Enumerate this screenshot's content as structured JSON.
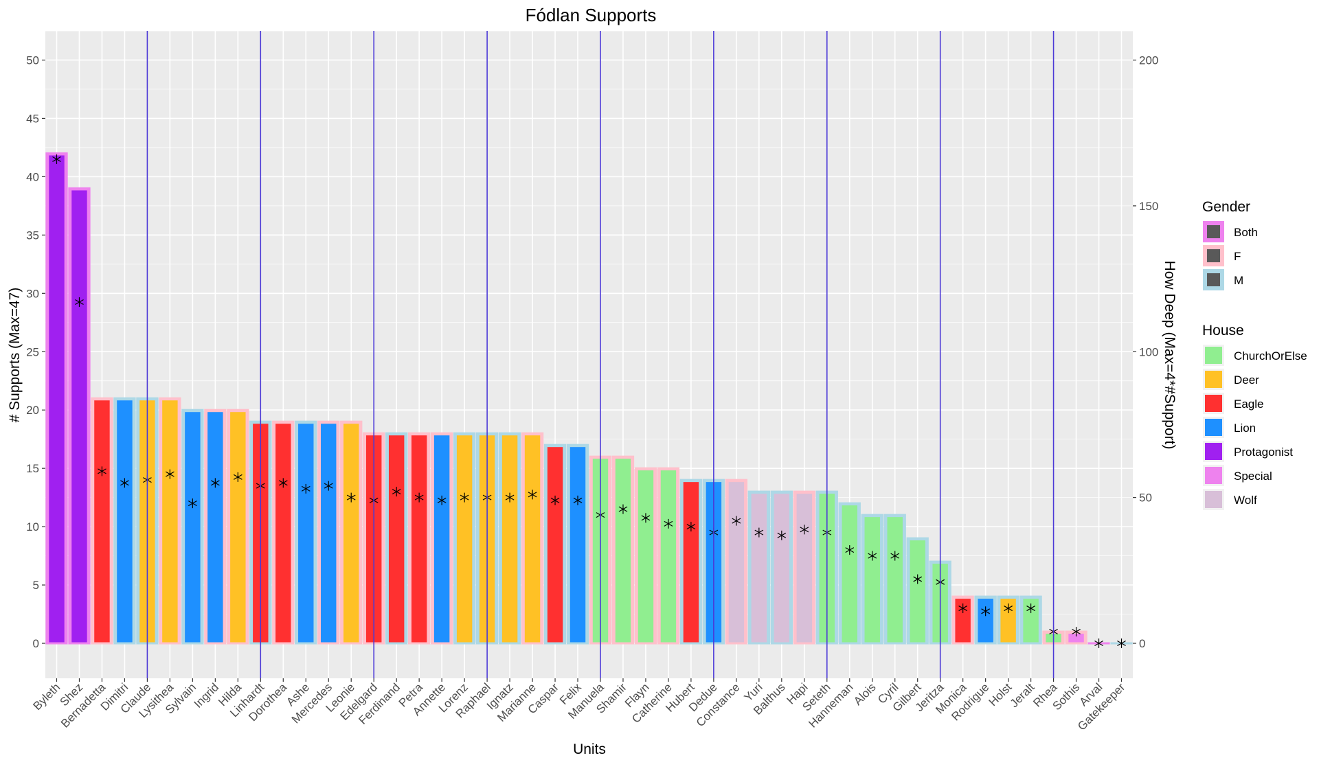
{
  "chart_data": {
    "type": "bar",
    "title": "Fódlan Supports",
    "xlabel": "Units",
    "ylabel": "# Supports (Max=47)",
    "y2label": "How Deep (Max=4*#Support)",
    "ylim": [
      -3,
      52.5
    ],
    "y2lim": [
      -12,
      210
    ],
    "yticks": [
      0,
      5,
      10,
      15,
      20,
      25,
      30,
      35,
      40,
      45,
      50
    ],
    "y2ticks": [
      0,
      50,
      100,
      150,
      200
    ],
    "grid": true,
    "legend_position": "right",
    "vlines_after_units": [
      "Claude",
      "Linhardt",
      "Edelgard",
      "Raphael",
      "Manuela",
      "Dedue",
      "Seteth",
      "Jeritza",
      "Rhea"
    ],
    "house_colors": {
      "ChurchOrElse": "#90EE90",
      "Deer": "#FFC125",
      "Eagle": "#FF3030",
      "Lion": "#1E90FF",
      "Protagonist": "#A020F0",
      "Special": "#EE82EE",
      "Wolf": "#D8BFD8"
    },
    "gender_colors": {
      "Both": "#EE82EE",
      "F": "#FFC0CB",
      "M": "#ADD8E6"
    },
    "units": [
      {
        "name": "Byleth",
        "supports": 42,
        "depth": 166,
        "house": "Protagonist",
        "gender": "Both"
      },
      {
        "name": "Shez",
        "supports": 39,
        "depth": 117,
        "house": "Protagonist",
        "gender": "Both"
      },
      {
        "name": "Bernadetta",
        "supports": 21,
        "depth": 59,
        "house": "Eagle",
        "gender": "F"
      },
      {
        "name": "Dimitri",
        "supports": 21,
        "depth": 55,
        "house": "Lion",
        "gender": "M"
      },
      {
        "name": "Claude",
        "supports": 21,
        "depth": 56,
        "house": "Deer",
        "gender": "M"
      },
      {
        "name": "Lysithea",
        "supports": 21,
        "depth": 58,
        "house": "Deer",
        "gender": "F"
      },
      {
        "name": "Sylvain",
        "supports": 20,
        "depth": 48,
        "house": "Lion",
        "gender": "M"
      },
      {
        "name": "Ingrid",
        "supports": 20,
        "depth": 55,
        "house": "Lion",
        "gender": "F"
      },
      {
        "name": "Hilda",
        "supports": 20,
        "depth": 57,
        "house": "Deer",
        "gender": "F"
      },
      {
        "name": "Linhardt",
        "supports": 19,
        "depth": 54,
        "house": "Eagle",
        "gender": "M"
      },
      {
        "name": "Dorothea",
        "supports": 19,
        "depth": 55,
        "house": "Eagle",
        "gender": "F"
      },
      {
        "name": "Ashe",
        "supports": 19,
        "depth": 53,
        "house": "Lion",
        "gender": "M"
      },
      {
        "name": "Mercedes",
        "supports": 19,
        "depth": 54,
        "house": "Lion",
        "gender": "F"
      },
      {
        "name": "Leonie",
        "supports": 19,
        "depth": 50,
        "house": "Deer",
        "gender": "F"
      },
      {
        "name": "Edelgard",
        "supports": 18,
        "depth": 49,
        "house": "Eagle",
        "gender": "F"
      },
      {
        "name": "Ferdinand",
        "supports": 18,
        "depth": 52,
        "house": "Eagle",
        "gender": "M"
      },
      {
        "name": "Petra",
        "supports": 18,
        "depth": 50,
        "house": "Eagle",
        "gender": "F"
      },
      {
        "name": "Annette",
        "supports": 18,
        "depth": 49,
        "house": "Lion",
        "gender": "F"
      },
      {
        "name": "Lorenz",
        "supports": 18,
        "depth": 50,
        "house": "Deer",
        "gender": "M"
      },
      {
        "name": "Raphael",
        "supports": 18,
        "depth": 50,
        "house": "Deer",
        "gender": "M"
      },
      {
        "name": "Ignatz",
        "supports": 18,
        "depth": 50,
        "house": "Deer",
        "gender": "M"
      },
      {
        "name": "Marianne",
        "supports": 18,
        "depth": 51,
        "house": "Deer",
        "gender": "F"
      },
      {
        "name": "Caspar",
        "supports": 17,
        "depth": 49,
        "house": "Eagle",
        "gender": "M"
      },
      {
        "name": "Felix",
        "supports": 17,
        "depth": 49,
        "house": "Lion",
        "gender": "M"
      },
      {
        "name": "Manuela",
        "supports": 16,
        "depth": 44,
        "house": "ChurchOrElse",
        "gender": "F"
      },
      {
        "name": "Shamir",
        "supports": 16,
        "depth": 46,
        "house": "ChurchOrElse",
        "gender": "F"
      },
      {
        "name": "Flayn",
        "supports": 15,
        "depth": 43,
        "house": "ChurchOrElse",
        "gender": "F"
      },
      {
        "name": "Catherine",
        "supports": 15,
        "depth": 41,
        "house": "ChurchOrElse",
        "gender": "F"
      },
      {
        "name": "Hubert",
        "supports": 14,
        "depth": 40,
        "house": "Eagle",
        "gender": "M"
      },
      {
        "name": "Dedue",
        "supports": 14,
        "depth": 38,
        "house": "Lion",
        "gender": "M"
      },
      {
        "name": "Constance",
        "supports": 14,
        "depth": 42,
        "house": "Wolf",
        "gender": "F"
      },
      {
        "name": "Yuri",
        "supports": 13,
        "depth": 38,
        "house": "Wolf",
        "gender": "M"
      },
      {
        "name": "Balthus",
        "supports": 13,
        "depth": 37,
        "house": "Wolf",
        "gender": "M"
      },
      {
        "name": "Hapi",
        "supports": 13,
        "depth": 39,
        "house": "Wolf",
        "gender": "F"
      },
      {
        "name": "Seteth",
        "supports": 13,
        "depth": 38,
        "house": "ChurchOrElse",
        "gender": "M"
      },
      {
        "name": "Hanneman",
        "supports": 12,
        "depth": 32,
        "house": "ChurchOrElse",
        "gender": "M"
      },
      {
        "name": "Alois",
        "supports": 11,
        "depth": 30,
        "house": "ChurchOrElse",
        "gender": "M"
      },
      {
        "name": "Cyril",
        "supports": 11,
        "depth": 30,
        "house": "ChurchOrElse",
        "gender": "M"
      },
      {
        "name": "Gilbert",
        "supports": 9,
        "depth": 22,
        "house": "ChurchOrElse",
        "gender": "M"
      },
      {
        "name": "Jeritza",
        "supports": 7,
        "depth": 21,
        "house": "ChurchOrElse",
        "gender": "M"
      },
      {
        "name": "Monica",
        "supports": 4,
        "depth": 12,
        "house": "Eagle",
        "gender": "F"
      },
      {
        "name": "Rodrigue",
        "supports": 4,
        "depth": 11,
        "house": "Lion",
        "gender": "M"
      },
      {
        "name": "Holst",
        "supports": 4,
        "depth": 12,
        "house": "Deer",
        "gender": "M"
      },
      {
        "name": "Jeralt",
        "supports": 4,
        "depth": 12,
        "house": "ChurchOrElse",
        "gender": "M"
      },
      {
        "name": "Rhea",
        "supports": 1,
        "depth": 4,
        "house": "ChurchOrElse",
        "gender": "F"
      },
      {
        "name": "Sothis",
        "supports": 1,
        "depth": 4,
        "house": "Special",
        "gender": "F"
      },
      {
        "name": "Arval",
        "supports": 0,
        "depth": 0,
        "house": "Special",
        "gender": "Both"
      },
      {
        "name": "Gatekeeper",
        "supports": 0,
        "depth": 0,
        "house": "Special",
        "gender": "M"
      }
    ],
    "legends": {
      "gender": {
        "title": "Gender",
        "entries": [
          "Both",
          "F",
          "M"
        ]
      },
      "house": {
        "title": "House",
        "entries": [
          "ChurchOrElse",
          "Deer",
          "Eagle",
          "Lion",
          "Protagonist",
          "Special",
          "Wolf"
        ]
      }
    }
  }
}
